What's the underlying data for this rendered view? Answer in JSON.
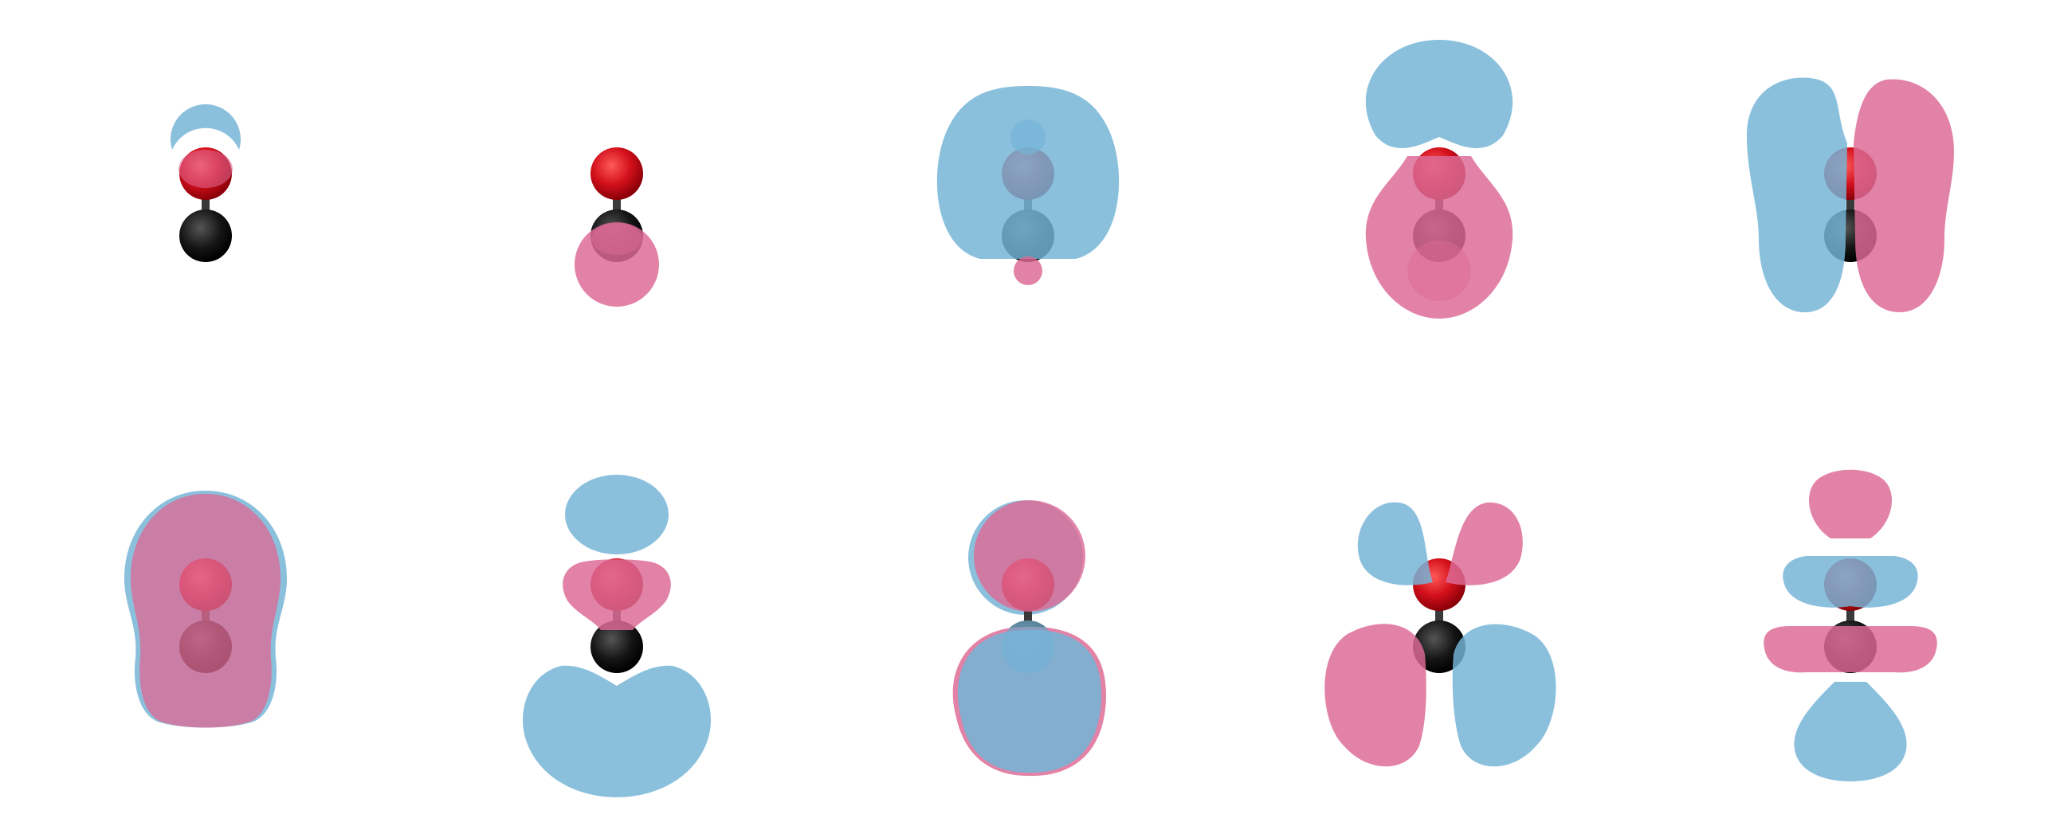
{
  "figure": {
    "description_text": "",
    "colors": {
      "positive_lobe": "#dd6a95",
      "negative_lobe": "#75b4d6",
      "oxygen": "#d3101c",
      "carbon": "#151515",
      "bond": "#3a3a3a"
    },
    "panels": [
      {
        "row": 1,
        "col": 1,
        "shape": "small-cap-on-oxygen"
      },
      {
        "row": 1,
        "col": 2,
        "shape": "small-lobe-on-carbon"
      },
      {
        "row": 1,
        "col": 3,
        "shape": "large-sigma-blob"
      },
      {
        "row": 1,
        "col": 4,
        "shape": "sigma-top-bottom"
      },
      {
        "row": 1,
        "col": 5,
        "shape": "pi-side-lobes"
      },
      {
        "row": 2,
        "col": 1,
        "shape": "pink-sigma-envelope"
      },
      {
        "row": 2,
        "col": 2,
        "shape": "three-lobe-sigma"
      },
      {
        "row": 2,
        "col": 3,
        "shape": "two-sphere-sigma"
      },
      {
        "row": 2,
        "col": 4,
        "shape": "pi-antibonding-cross"
      },
      {
        "row": 2,
        "col": 5,
        "shape": "sigma-antibonding-stack"
      }
    ]
  }
}
